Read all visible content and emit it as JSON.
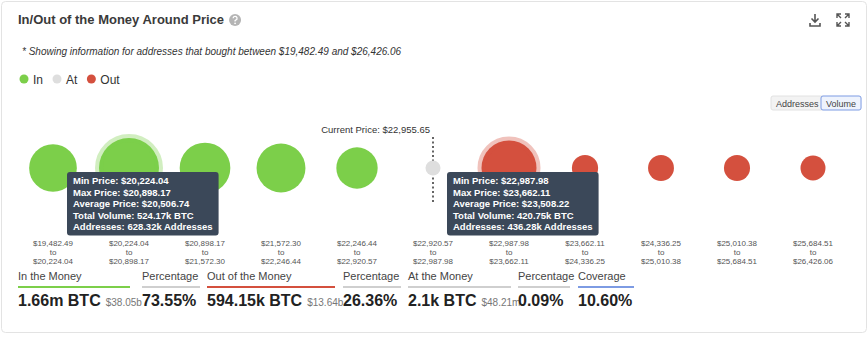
{
  "chart_data": {
    "type": "bubble",
    "title": "In/Out of the Money Around Price",
    "subtitle": "* Showing information for addresses that bought between $19,482.49 and $26,426.06",
    "legend": "top-left",
    "tick_labels": "x",
    "categories": [
      "$19,482.49 to $20,224.04",
      "$20,224.04 to $20,898.17",
      "$20,898.17 to $21,572.30",
      "$21,572.30 to $22,246.44",
      "$22,246.44 to $22,920.57",
      "$22,920.57 to $22,987.98",
      "$22,987.98 to $23,662.11",
      "$23,662.11 to $24,336.25",
      "$24,336.25 to $25,010.38",
      "$25,010.38 to $25,684.51",
      "$25,684.51 to $26,426.06"
    ],
    "series": [
      {
        "name": "In",
        "color": "#7ccf4a",
        "values": [
          290,
          524.17,
          340,
          310,
          196,
          null,
          null,
          null,
          null,
          null,
          null
        ]
      },
      {
        "name": "At",
        "color": "#dedede",
        "values": [
          null,
          null,
          null,
          null,
          null,
          2.1,
          null,
          null,
          null,
          null,
          null
        ]
      },
      {
        "name": "Out",
        "color": "#d4503e",
        "values": [
          null,
          null,
          null,
          null,
          null,
          null,
          420.75,
          46,
          44,
          45,
          38.4
        ]
      }
    ],
    "current_price": {
      "label": "Current Price: $22,955.65",
      "category": "$22,920.57 to $22,987.98"
    },
    "annotations": [
      {
        "category": "$20,224.04 to $20,898.17",
        "lines": [
          "Min Price: $20,224.04",
          "Max Price: $20,898.17",
          "Average Price: $20,506.74",
          "Total Volume: 524.17k BTC",
          "Addresses: 628.32k Addresses"
        ]
      },
      {
        "category": "$22,987.98 to $23,662.11",
        "lines": [
          "Min Price: $22,987.98",
          "Max Price: $23,662.11",
          "Average Price: $23,508.22",
          "Total Volume: 420.75k BTC",
          "Addresses: 436.28k Addresses"
        ]
      }
    ]
  },
  "controls": {
    "buttons": [
      "Addresses",
      "Volume"
    ],
    "active": "Volume"
  },
  "summary": {
    "items": [
      {
        "label": "In the Money",
        "value": "1.66m BTC",
        "sub": "$38.05b"
      },
      {
        "label": "Percentage",
        "value": "73.55%"
      },
      {
        "label": "Out of the Money",
        "value": "594.15k BTC",
        "sub": "$13.64b"
      },
      {
        "label": "Percentage",
        "value": "26.36%"
      },
      {
        "label": "At the Money",
        "value": "2.1k BTC",
        "sub": "$48.21m"
      },
      {
        "label": "Percentage",
        "value": "0.09%"
      },
      {
        "label": "Coverage",
        "value": "10.60%"
      }
    ]
  }
}
